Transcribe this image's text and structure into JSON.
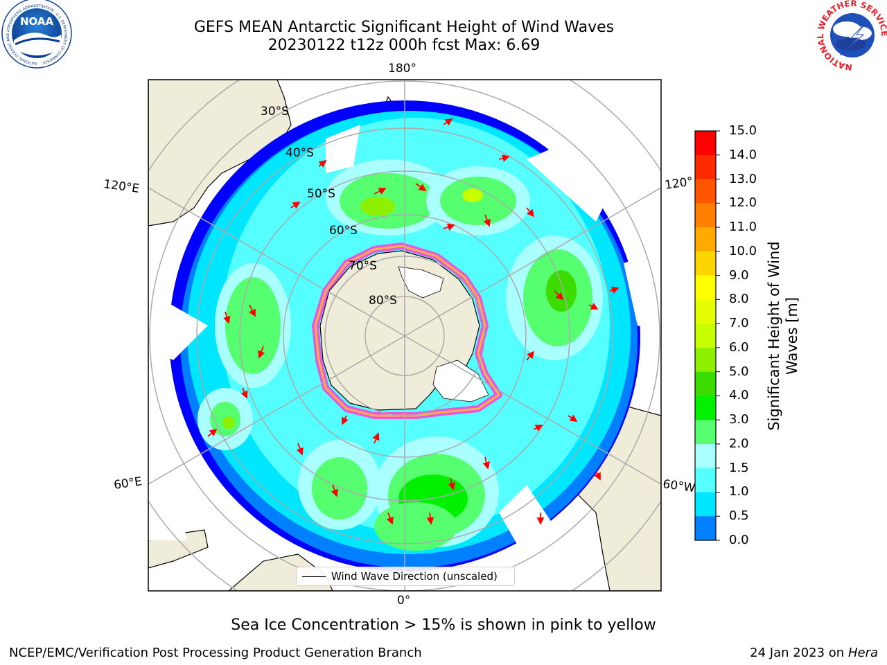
{
  "header": {
    "title_line1": "GEFS MEAN Antarctic Significant Height of Wind Waves",
    "title_line2": "20230122 t12z 000h fcst   Max: 6.69"
  },
  "map": {
    "longitude_labels": {
      "top": "180°",
      "bottom": "0°",
      "upper_left": "120°E",
      "upper_right": "120°",
      "lower_left": "60°E",
      "lower_right": "60°W"
    },
    "latitude_labels": [
      "30°S",
      "40°S",
      "50°S",
      "60°S",
      "70°S",
      "80°S"
    ],
    "legend_label": "Wind Wave Direction (unscaled)"
  },
  "colorbar": {
    "label": "Significant Height of Wind Waves [m]",
    "label_line1": "Significant Height of Wind",
    "label_line2": "Waves [m]",
    "ticks": [
      "15.0",
      "14.0",
      "13.0",
      "12.0",
      "11.0",
      "10.0",
      "9.0",
      "8.0",
      "7.0",
      "6.0",
      "5.0",
      "4.0",
      "3.0",
      "2.0",
      "1.5",
      "1.0",
      "0.5",
      "0.0"
    ],
    "colors": [
      "#ff0000",
      "#ff2a00",
      "#ff5500",
      "#ff8000",
      "#ffaa00",
      "#ffd500",
      "#ffff00",
      "#e6ff00",
      "#c8ff00",
      "#8cf000",
      "#3cdc00",
      "#00f000",
      "#55ff70",
      "#aaffff",
      "#55ffff",
      "#00e6ff",
      "#0080ff",
      "#0000ff"
    ]
  },
  "footer": {
    "caption": "Sea Ice Concentration > 15% is shown in pink to yellow",
    "credit": "NCEP/EMC/Verification Post Processing Product Generation Branch",
    "date": "24 Jan 2023 on",
    "host": "Hera"
  },
  "logos": {
    "noaa_text": "NOAA",
    "noaa_ring": "NATIONAL OCEANIC AND ATMOSPHERIC ADMINISTRATION · U.S. DEPARTMENT OF COMMERCE",
    "nws_ring": "NATIONAL WEATHER SERVICE"
  }
}
